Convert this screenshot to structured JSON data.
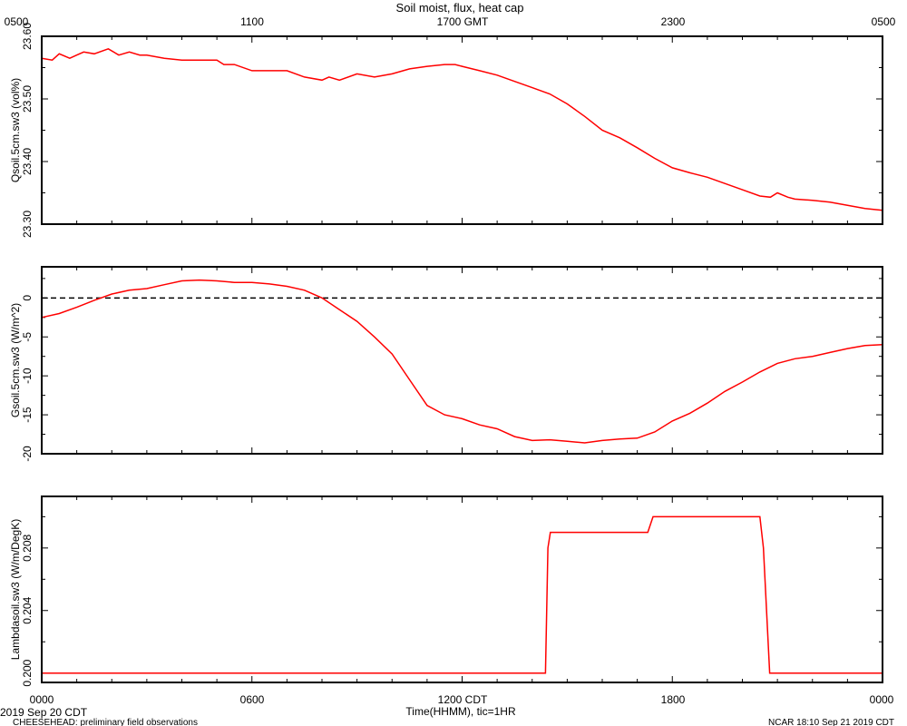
{
  "chart_data": {
    "type": "line",
    "title": "Soil moist, flux, heat cap",
    "top_axis": {
      "ticks": [
        "0500",
        "1100",
        "1700 GMT",
        "2300",
        "0500"
      ]
    },
    "bottom_axis": {
      "ticks": [
        "0000",
        "0600",
        "1200 CDT",
        "1800",
        "0000"
      ],
      "label": "Time(HHMM), tic=1HR",
      "date_label": "2019 Sep 20 CDT"
    },
    "x_unit": "hours since 2019 Sep 20 00:00 CDT",
    "x_range": [
      0,
      24
    ],
    "footer": {
      "left": "CHEESEHEAD: preliminary field observations",
      "right": "NCAR 18:10 Sep 21 2019 CDT"
    },
    "panels": [
      {
        "ylabel": "Qsoil.5cm.sw3 (vol%)",
        "ylim": [
          23.3,
          23.6
        ],
        "yticks": [
          23.3,
          23.4,
          23.5,
          23.6
        ],
        "ytick_labels": [
          "23.30",
          "23.40",
          "23.50",
          "23.60"
        ],
        "zero_line": false,
        "series": [
          {
            "color": "#ff0000",
            "x": [
              0,
              0.3,
              0.5,
              0.8,
              1.0,
              1.2,
              1.5,
              1.9,
              2.2,
              2.5,
              2.8,
              3.0,
              3.5,
              4.0,
              4.5,
              5.0,
              5.2,
              5.5,
              6.0,
              6.3,
              6.6,
              7.0,
              7.5,
              8.0,
              8.2,
              8.5,
              9.0,
              9.5,
              10.0,
              10.5,
              11.0,
              11.5,
              11.8,
              12.0,
              12.5,
              13.0,
              13.5,
              14.0,
              14.5,
              15.0,
              15.5,
              16.0,
              16.5,
              17.0,
              17.5,
              18.0,
              18.5,
              19.0,
              19.5,
              20.0,
              20.5,
              20.8,
              21.0,
              21.3,
              21.5,
              22.0,
              22.5,
              23.0,
              23.5,
              24.0
            ],
            "y": [
              23.565,
              23.562,
              23.572,
              23.565,
              23.57,
              23.575,
              23.572,
              23.58,
              23.57,
              23.575,
              23.57,
              23.57,
              23.565,
              23.562,
              23.562,
              23.562,
              23.555,
              23.555,
              23.545,
              23.545,
              23.545,
              23.545,
              23.535,
              23.53,
              23.535,
              23.53,
              23.54,
              23.535,
              23.54,
              23.548,
              23.552,
              23.555,
              23.555,
              23.552,
              23.545,
              23.538,
              23.528,
              23.518,
              23.508,
              23.492,
              23.472,
              23.45,
              23.438,
              23.422,
              23.405,
              23.39,
              23.382,
              23.375,
              23.365,
              23.355,
              23.345,
              23.343,
              23.35,
              23.343,
              23.34,
              23.338,
              23.335,
              23.33,
              23.325,
              23.322
            ]
          }
        ]
      },
      {
        "ylabel": "Gsoil.5cm.sw3 (W/m^2)",
        "ylim": [
          -20,
          4
        ],
        "yticks": [
          0,
          -5,
          -10,
          -15,
          -20
        ],
        "ytick_labels": [
          "0",
          "-5",
          "-10",
          "-15",
          "-20"
        ],
        "zero_line": true,
        "series": [
          {
            "color": "#ff0000",
            "x": [
              0,
              0.5,
              1.0,
              1.5,
              2.0,
              2.5,
              3.0,
              3.5,
              4.0,
              4.5,
              5.0,
              5.5,
              6.0,
              6.5,
              7.0,
              7.5,
              8.0,
              8.5,
              9.0,
              9.5,
              10.0,
              10.5,
              11.0,
              11.5,
              12.0,
              12.5,
              13.0,
              13.5,
              14.0,
              14.5,
              15.0,
              15.5,
              16.0,
              16.5,
              17.0,
              17.5,
              18.0,
              18.5,
              19.0,
              19.5,
              20.0,
              20.5,
              21.0,
              21.5,
              22.0,
              22.5,
              23.0,
              23.5,
              24.0
            ],
            "y": [
              -2.5,
              -2.0,
              -1.2,
              -0.3,
              0.5,
              1.0,
              1.2,
              1.7,
              2.2,
              2.3,
              2.2,
              2.0,
              2.0,
              1.8,
              1.5,
              1.0,
              0.0,
              -1.5,
              -3.0,
              -5.0,
              -7.2,
              -10.5,
              -13.8,
              -15.0,
              -15.5,
              -16.3,
              -16.8,
              -17.8,
              -18.3,
              -18.2,
              -18.4,
              -18.6,
              -18.3,
              -18.1,
              -18.0,
              -17.2,
              -15.8,
              -14.8,
              -13.5,
              -12.0,
              -10.8,
              -9.5,
              -8.4,
              -7.8,
              -7.5,
              -7.0,
              -6.5,
              -6.1,
              -6.0
            ]
          }
        ]
      },
      {
        "ylabel": "Lambdasoil.sw3 (W/m/DegK)",
        "ylim": [
          0.1994,
          0.2113
        ],
        "yticks": [
          0.2,
          0.204,
          0.208
        ],
        "ytick_labels": [
          "0.200",
          "0.204",
          "0.208"
        ],
        "zero_line": false,
        "series": [
          {
            "color": "#ff0000",
            "x": [
              0,
              14.38,
              14.45,
              14.52,
              15.0,
              17.3,
              17.45,
              17.55,
              18.0,
              20.5,
              20.6,
              20.78,
              24.0
            ],
            "y": [
              0.2,
              0.2,
              0.208,
              0.209,
              0.209,
              0.209,
              0.21,
              0.21,
              0.21,
              0.21,
              0.208,
              0.2,
              0.2
            ]
          }
        ]
      }
    ]
  }
}
